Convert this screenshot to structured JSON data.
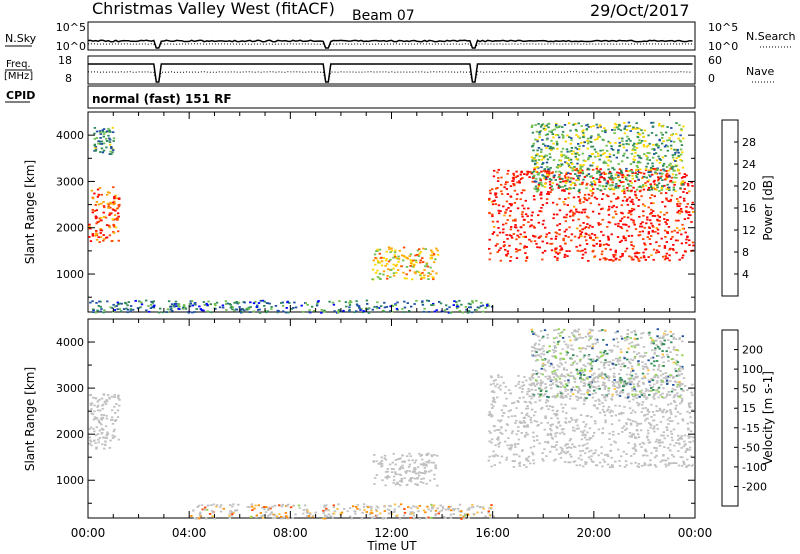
{
  "header": {
    "title": "Christmas Valley West (fitACF)",
    "beam": "Beam 07",
    "date": "29/Oct/2017"
  },
  "status_panels": {
    "nsky": {
      "label": "N.Sky",
      "ticks": [
        "10^5",
        "10^0"
      ],
      "right_label": "N.Search",
      "right_ticks": [
        "10^5",
        "10^0"
      ]
    },
    "freq": {
      "label_line1": "Freq.",
      "label_line2": "[MHz]",
      "ticks": [
        "18",
        "8"
      ],
      "right_label": "Nave",
      "right_ticks": [
        "60",
        "0"
      ]
    },
    "cpid": {
      "label": "CPID",
      "value": "normal (fast) 151 RF"
    }
  },
  "colors": {
    "power_scale": [
      "#0000ff",
      "#1e50a0",
      "#2e8b57",
      "#6fbf4f",
      "#ffd700",
      "#ffa500",
      "#ff4500",
      "#ff0000"
    ],
    "velocity_scale": [
      "#ff0000",
      "#ff4500",
      "#ff8c00",
      "#ffc040",
      "#c8c8c8",
      "#8fd34f",
      "#2e8b57",
      "#1e50a0",
      "#0000ff"
    ],
    "ground_scatter": "#c0c0c0"
  },
  "chart_data": [
    {
      "type": "heatmap",
      "title": "Power",
      "xlabel": "Time UT",
      "ylabel": "Slant Range [km]",
      "x_ticks": [
        "00:00",
        "04:00",
        "08:00",
        "12:00",
        "16:00",
        "20:00",
        "00:00"
      ],
      "y_ticks": [
        "1000",
        "2000",
        "3000",
        "4000"
      ],
      "xlim": [
        0,
        24
      ],
      "ylim": [
        180,
        4500
      ],
      "colorbar": {
        "label": "Power [dB]",
        "ticks": [
          "4",
          "8",
          "12",
          "16",
          "20",
          "24",
          "28"
        ],
        "range": [
          0,
          30
        ]
      },
      "regions": [
        {
          "t": [
            0.0,
            1.2
          ],
          "r": [
            1700,
            2900
          ],
          "value": 24
        },
        {
          "t": [
            0.2,
            1.0
          ],
          "r": [
            3600,
            4200
          ],
          "value": 10
        },
        {
          "t": [
            11.2,
            13.8
          ],
          "r": [
            900,
            1600
          ],
          "value": 18
        },
        {
          "t": [
            15.8,
            23.9
          ],
          "r": [
            1300,
            3300
          ],
          "value": 28
        },
        {
          "t": [
            17.5,
            23.5
          ],
          "r": [
            2800,
            4300
          ],
          "value": 12
        },
        {
          "t": [
            0.0,
            16.0
          ],
          "r": [
            180,
            450
          ],
          "value": 8
        }
      ]
    },
    {
      "type": "heatmap",
      "title": "Velocity",
      "xlabel": "Time UT",
      "ylabel": "Slant Range [km]",
      "x_ticks": [
        "00:00",
        "04:00",
        "08:00",
        "12:00",
        "16:00",
        "20:00",
        "00:00"
      ],
      "y_ticks": [
        "1000",
        "2000",
        "3000",
        "4000"
      ],
      "xlim": [
        0,
        24
      ],
      "ylim": [
        180,
        4500
      ],
      "colorbar": {
        "label": "Velocity [m s-1]",
        "ticks": [
          "200",
          "100",
          "50",
          "15",
          "-15",
          "-50",
          "-100",
          "-200"
        ],
        "range": [
          -250,
          250
        ]
      },
      "regions": [
        {
          "t": [
            0.0,
            1.2
          ],
          "r": [
            1700,
            2900
          ],
          "value": 0
        },
        {
          "t": [
            11.2,
            13.8
          ],
          "r": [
            900,
            1600
          ],
          "value": 0
        },
        {
          "t": [
            15.8,
            23.9
          ],
          "r": [
            1300,
            3300
          ],
          "value": 0
        },
        {
          "t": [
            17.5,
            23.5
          ],
          "r": [
            2800,
            4300
          ],
          "value": 60
        },
        {
          "t": [
            4.0,
            16.0
          ],
          "r": [
            180,
            500
          ],
          "value": -60
        }
      ]
    }
  ]
}
